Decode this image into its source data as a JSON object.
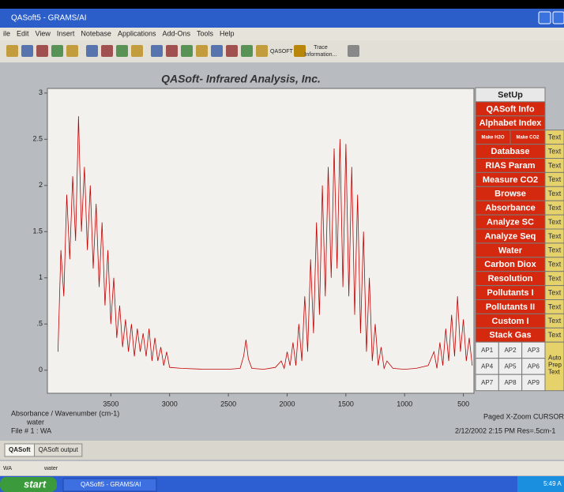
{
  "window": {
    "title": "QASoft5 - GRAMS/AI"
  },
  "menu": [
    "ile",
    "Edit",
    "View",
    "Insert",
    "Notebase",
    "Applications",
    "Add-Ons",
    "Tools",
    "Help"
  ],
  "toolbar": {
    "qasoft": "QASOFT",
    "trace": [
      "Trace",
      "Information..."
    ]
  },
  "chart_data": {
    "type": "line",
    "title": "QASoft- Infrared Analysis, Inc.",
    "color": "#c00000",
    "x": [
      3950,
      3925,
      3900,
      3875,
      3850,
      3825,
      3800,
      3775,
      3750,
      3725,
      3700,
      3675,
      3650,
      3625,
      3600,
      3575,
      3550,
      3525,
      3500,
      3475,
      3450,
      3425,
      3400,
      3375,
      3350,
      3325,
      3300,
      3275,
      3250,
      3225,
      3200,
      3175,
      3150,
      3125,
      3100,
      3075,
      3050,
      3025,
      3000,
      2900,
      2700,
      2500,
      2400,
      2370,
      2350,
      2330,
      2300,
      2200,
      2100,
      2050,
      2025,
      2000,
      1975,
      1950,
      1925,
      1900,
      1875,
      1850,
      1825,
      1800,
      1775,
      1750,
      1725,
      1700,
      1675,
      1650,
      1625,
      1600,
      1575,
      1550,
      1525,
      1500,
      1475,
      1450,
      1425,
      1400,
      1375,
      1350,
      1325,
      1300,
      1275,
      1250,
      1225,
      1200,
      1175,
      1150,
      1100,
      1000,
      900,
      800,
      750,
      725,
      700,
      675,
      650,
      625,
      600,
      575,
      550,
      525,
      500,
      475,
      450,
      425
    ],
    "values": [
      0.2,
      1.3,
      0.8,
      1.9,
      1.2,
      2.1,
      1.4,
      2.75,
      1.5,
      2.2,
      1.3,
      2.0,
      1.1,
      1.8,
      0.9,
      1.6,
      0.7,
      1.3,
      0.5,
      1.0,
      0.35,
      0.7,
      0.25,
      0.55,
      0.2,
      0.5,
      0.15,
      0.45,
      0.2,
      0.4,
      0.15,
      0.45,
      0.1,
      0.35,
      0.1,
      0.25,
      0.05,
      0.2,
      0.03,
      0.02,
      0.01,
      0.01,
      0.02,
      0.15,
      0.33,
      0.12,
      0.02,
      0.01,
      0.03,
      0.1,
      0.02,
      0.2,
      0.05,
      0.3,
      0.05,
      0.5,
      0.1,
      0.8,
      0.2,
      1.2,
      0.4,
      1.6,
      0.6,
      2.0,
      0.8,
      2.2,
      1.0,
      2.4,
      1.1,
      2.5,
      0.9,
      2.45,
      0.8,
      2.2,
      0.6,
      1.9,
      0.4,
      1.5,
      0.2,
      1.0,
      0.1,
      0.5,
      0.05,
      0.25,
      0.02,
      0.1,
      0.02,
      0.01,
      0.02,
      0.05,
      0.2,
      0.02,
      0.3,
      0.05,
      0.45,
      0.1,
      0.6,
      0.15,
      0.8,
      0.2,
      0.55,
      0.1,
      0.35,
      0.05
    ],
    "xlim": [
      4040,
      410
    ],
    "ylim": [
      -0.25,
      3.05
    ],
    "xticks": [
      3500,
      3000,
      2500,
      2000,
      1500,
      1000,
      500
    ],
    "yticks": [
      0,
      {
        "value": 0.5,
        "label": ".5"
      },
      1,
      1.5,
      2,
      2.5,
      3
    ]
  },
  "axis_label": "Absorbance / Wavenumber (cm-1)",
  "sample": "water",
  "file": "File # 1 : WA",
  "status_right": "Paged  X-Zoom CURSOR",
  "timestamp": "2/12/2002 2:15 PM Res=.5cm-1",
  "panel": {
    "setup": "SetUp",
    "top_buttons": [
      "QASoft Info",
      "Alphabet Index"
    ],
    "make": [
      "Make H2O",
      "Make CO2"
    ],
    "buttons": [
      "Database",
      "RIAS Param",
      "Measure CO2",
      "Browse",
      "Absorbance",
      "Analyze SC",
      "Analyze Seq",
      "Water",
      "Carbon Diox",
      "Resolution",
      "Pollutants I",
      "Pollutants II",
      "Custom I",
      "Stack Gas"
    ],
    "text_buttons": [
      "Text",
      "Text",
      "Text",
      "Text",
      "Text",
      "Text",
      "Text",
      "Text",
      "Text",
      "Text",
      "Text",
      "Text",
      "Text",
      "Text",
      "Text"
    ],
    "ap": [
      "AP1",
      "AP2",
      "AP3",
      "AP4",
      "AP5",
      "AP6",
      "AP7",
      "AP8",
      "AP9"
    ],
    "auto": [
      "Auto",
      "Prep",
      "Text"
    ]
  },
  "tabs": [
    "QASoft",
    "QASoft output"
  ],
  "status_bar": [
    "WA",
    "water"
  ],
  "taskbar": {
    "start": "start",
    "task": "QASoft5 - GRAMS/AI",
    "clock": "5:49 A"
  }
}
